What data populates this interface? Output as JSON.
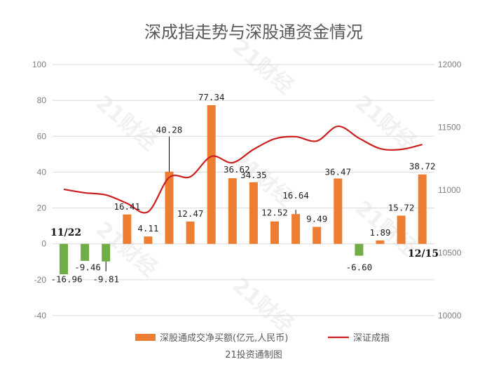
{
  "chart_data": {
    "type": "bar",
    "title": "深成指走势与深股通资金情况",
    "categories": [
      "11/22",
      "",
      "",
      "",
      "",
      "",
      "",
      "",
      "",
      "",
      "",
      "",
      "",
      "",
      "",
      "",
      "",
      "12/15"
    ],
    "series": [
      {
        "name": "深股通成交净买额(亿元,人民币)",
        "type": "bar",
        "axis": "left",
        "values": [
          -16.96,
          -9.46,
          -9.81,
          16.41,
          4.11,
          40.28,
          12.47,
          77.34,
          36.62,
          34.35,
          12.52,
          16.64,
          9.49,
          36.47,
          -6.6,
          1.89,
          15.72,
          38.72
        ],
        "labels": [
          "-16.96",
          "-9.46",
          "-9.81",
          "16.41",
          "4.11",
          "40.28",
          "12.47",
          "77.34",
          "36.62",
          "34.35",
          "12.52",
          "16.64",
          "9.49",
          "36.47",
          "-6.60",
          "1.89",
          "15.72",
          "38.72"
        ]
      },
      {
        "name": "深证成指",
        "type": "line",
        "axis": "right",
        "values": [
          11006,
          10978,
          10961,
          10894,
          10827,
          11101,
          11106,
          11268,
          11218,
          11324,
          11408,
          11425,
          11391,
          11508,
          11413,
          11330,
          11324,
          11363
        ]
      }
    ],
    "y_left": {
      "range": [
        -40,
        100
      ],
      "ticks": [
        "100",
        "80",
        "60",
        "40",
        "20",
        "0",
        "-20",
        "-40"
      ]
    },
    "y_right": {
      "range": [
        10000,
        12000
      ],
      "ticks": [
        "12000",
        "11500",
        "11000",
        "10500",
        "10000"
      ]
    },
    "annotations": {
      "start": "11/22",
      "end": "12/15"
    },
    "grid": true,
    "legend_position": "bottom",
    "source": "21投资通制图",
    "watermark": "21财经",
    "colors": {
      "positive": "#ed7d31",
      "negative": "#70ad47",
      "line": "#cc1f1f",
      "grid": "#d9d9d9"
    }
  }
}
